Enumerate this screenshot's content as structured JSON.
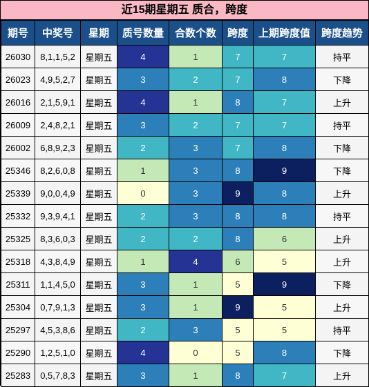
{
  "title": "近15期星期五 质合，跨度",
  "headers": [
    "期号",
    "中奖号",
    "星期",
    "质号数量",
    "合数个数",
    "跨度",
    "上期跨度值",
    "跨度趋势"
  ],
  "rows": [
    {
      "issue": "26030",
      "numbers": "8,1,1,5,2",
      "weekday": "星期五",
      "prime": "4",
      "composite": "1",
      "span": "7",
      "prev_span": "7",
      "trend": "持平"
    },
    {
      "issue": "26023",
      "numbers": "4,9,5,2,7",
      "weekday": "星期五",
      "prime": "3",
      "composite": "2",
      "span": "7",
      "prev_span": "8",
      "trend": "下降"
    },
    {
      "issue": "26016",
      "numbers": "2,1,5,9,1",
      "weekday": "星期五",
      "prime": "4",
      "composite": "1",
      "span": "8",
      "prev_span": "7",
      "trend": "上升"
    },
    {
      "issue": "26009",
      "numbers": "2,4,8,2,1",
      "weekday": "星期五",
      "prime": "3",
      "composite": "2",
      "span": "7",
      "prev_span": "7",
      "trend": "持平"
    },
    {
      "issue": "26002",
      "numbers": "6,8,9,2,3",
      "weekday": "星期五",
      "prime": "2",
      "composite": "3",
      "span": "7",
      "prev_span": "8",
      "trend": "下降"
    },
    {
      "issue": "25346",
      "numbers": "8,2,6,0,8",
      "weekday": "星期五",
      "prime": "1",
      "composite": "3",
      "span": "8",
      "prev_span": "9",
      "trend": "下降"
    },
    {
      "issue": "25339",
      "numbers": "9,0,0,4,9",
      "weekday": "星期五",
      "prime": "0",
      "composite": "3",
      "span": "9",
      "prev_span": "8",
      "trend": "上升"
    },
    {
      "issue": "25332",
      "numbers": "9,3,9,4,1",
      "weekday": "星期五",
      "prime": "2",
      "composite": "3",
      "span": "8",
      "prev_span": "8",
      "trend": "持平"
    },
    {
      "issue": "25325",
      "numbers": "8,3,6,0,3",
      "weekday": "星期五",
      "prime": "2",
      "composite": "2",
      "span": "8",
      "prev_span": "6",
      "trend": "上升"
    },
    {
      "issue": "25318",
      "numbers": "4,3,8,4,9",
      "weekday": "星期五",
      "prime": "1",
      "composite": "4",
      "span": "6",
      "prev_span": "5",
      "trend": "上升"
    },
    {
      "issue": "25311",
      "numbers": "1,1,4,5,0",
      "weekday": "星期五",
      "prime": "3",
      "composite": "1",
      "span": "5",
      "prev_span": "9",
      "trend": "下降"
    },
    {
      "issue": "25304",
      "numbers": "0,7,9,1,3",
      "weekday": "星期五",
      "prime": "3",
      "composite": "1",
      "span": "9",
      "prev_span": "5",
      "trend": "上升"
    },
    {
      "issue": "25297",
      "numbers": "4,5,3,8,6",
      "weekday": "星期五",
      "prime": "2",
      "composite": "3",
      "span": "5",
      "prev_span": "5",
      "trend": "持平"
    },
    {
      "issue": "25290",
      "numbers": "1,2,5,1,0",
      "weekday": "星期五",
      "prime": "4",
      "composite": "0",
      "span": "5",
      "prev_span": "8",
      "trend": "下降"
    },
    {
      "issue": "25283",
      "numbers": "0,5,7,8,3",
      "weekday": "星期五",
      "prime": "3",
      "composite": "1",
      "span": "8",
      "prev_span": "7",
      "trend": "上升"
    }
  ],
  "colors": {
    "title_bg": "#f9b8c4",
    "header_bg": "#1a4f8a",
    "level_0": "#ffffd6",
    "level_1": "#c4e8b6",
    "level_2": "#41b6c4",
    "level_3": "#2c7fb8",
    "level_4": "#0c1f5e"
  }
}
